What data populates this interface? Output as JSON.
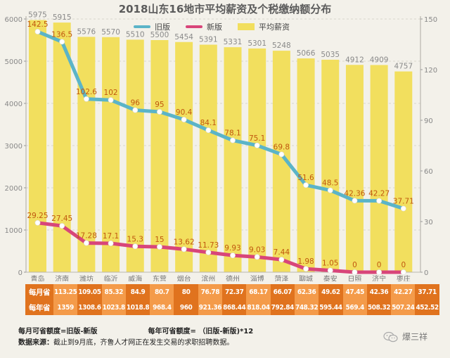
{
  "chart_data": {
    "type": "bar+line",
    "title": "2018山东16地市平均薪资及个税缴纳额分布",
    "categories": [
      "青岛",
      "济南",
      "潍坊",
      "临沂",
      "威海",
      "东营",
      "烟台",
      "滨州",
      "德州",
      "淄博",
      "菏泽",
      "聊城",
      "泰安",
      "日照",
      "济宁",
      "枣庄"
    ],
    "series": [
      {
        "name": "平均薪资",
        "type": "bar",
        "axis": "left",
        "color": "#f2df5e",
        "values": [
          5975,
          5915,
          5576,
          5570,
          5510,
          5500,
          5454,
          5391,
          5331,
          5301,
          5248,
          5066,
          5035,
          4912,
          4909,
          4757
        ]
      },
      {
        "name": "旧版",
        "type": "line",
        "axis": "right",
        "color": "#5bb4c8",
        "values": [
          142.5,
          136.5,
          102.6,
          102,
          96,
          95,
          90.4,
          84.1,
          78.1,
          75.1,
          69.8,
          51.6,
          48.5,
          42.36,
          42.27,
          37.71
        ]
      },
      {
        "name": "新版",
        "type": "line",
        "axis": "right",
        "color": "#d8457a",
        "values": [
          29.25,
          27.45,
          17.28,
          17.1,
          15.3,
          15,
          13.62,
          11.73,
          9.93,
          9.03,
          7.44,
          1.98,
          1.05,
          0,
          0,
          0
        ]
      }
    ],
    "left_axis": {
      "range": [
        0,
        6000
      ],
      "ticks": [
        0,
        1000,
        2000,
        3000,
        4000,
        5000,
        6000
      ]
    },
    "right_axis": {
      "range": [
        0,
        150
      ],
      "ticks": [
        0,
        30,
        60,
        90,
        120,
        150
      ]
    },
    "grid": true,
    "legend_position": "top",
    "label_color": "#c0580f",
    "bar_label_color": "#8a8a8a"
  },
  "legend": [
    {
      "label": "旧版",
      "color": "#5bb4c8",
      "kind": "line"
    },
    {
      "label": "新版",
      "color": "#d8457a",
      "kind": "line"
    },
    {
      "label": "平均薪资",
      "color": "#f2df5e",
      "kind": "box"
    }
  ],
  "table": {
    "rows": [
      {
        "header": "每月省",
        "values": [
          "113.25",
          "109.05",
          "85.32",
          "84.9",
          "80.7",
          "80",
          "76.78",
          "72.37",
          "68.17",
          "66.07",
          "62.36",
          "49.62",
          "47.45",
          "42.36",
          "42.27",
          "37.71"
        ]
      },
      {
        "header": "每年省",
        "values": [
          "1359",
          "1308.6",
          "1023.8",
          "1018.8",
          "968.4",
          "960",
          "921.36",
          "868.44",
          "818.04",
          "792.84",
          "748.32",
          "595.44",
          "569.4",
          "508.32",
          "507.24",
          "452.52"
        ]
      }
    ]
  },
  "notes": {
    "monthly_formula": "每月可省额度=旧版-新版",
    "yearly_formula": "每年可省额度= （旧版-新版)*12",
    "source_label": "数据来源：",
    "source_text": "截止到9月底，齐鲁人才网正在发生交易的求职招聘数据。"
  },
  "brand": {
    "name": "爆三祥",
    "icon": "wechat-icon"
  }
}
